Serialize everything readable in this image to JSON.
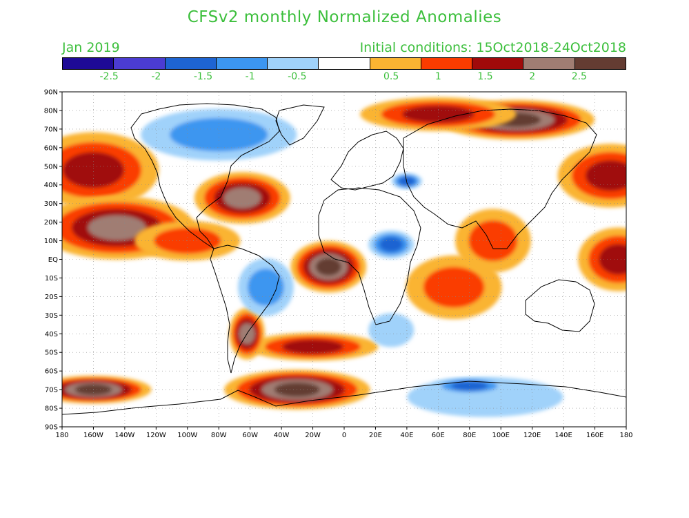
{
  "title": "CFSv2 monthly Normalized Anomalies",
  "month_label": "Jan 2019",
  "init_conditions": "Initial conditions: 15Oct2018-24Oct2018",
  "colorbar": {
    "colors": [
      "#1e0a96",
      "#4b3cd2",
      "#1e64d2",
      "#3c96f0",
      "#a0d2fa",
      "#ffffff",
      "#fab432",
      "#fa3c00",
      "#a00a0a",
      "#a07d73",
      "#643c32"
    ],
    "tick_labels": [
      "-2.5",
      "-2",
      "-1.5",
      "-1",
      "-0.5",
      "0.5",
      "1",
      "1.5",
      "2",
      "2.5"
    ],
    "tick_values": [
      -2.5,
      -2,
      -1.5,
      -1,
      -0.5,
      0.5,
      1,
      1.5,
      2,
      2.5
    ],
    "min": -3,
    "max": 3
  },
  "axes": {
    "lon_ticks": [
      {
        "value": -180,
        "label": "180"
      },
      {
        "value": -160,
        "label": "160W"
      },
      {
        "value": -140,
        "label": "140W"
      },
      {
        "value": -120,
        "label": "120W"
      },
      {
        "value": -100,
        "label": "100W"
      },
      {
        "value": -80,
        "label": "80W"
      },
      {
        "value": -60,
        "label": "60W"
      },
      {
        "value": -40,
        "label": "40W"
      },
      {
        "value": -20,
        "label": "20W"
      },
      {
        "value": 0,
        "label": "0"
      },
      {
        "value": 20,
        "label": "20E"
      },
      {
        "value": 40,
        "label": "40E"
      },
      {
        "value": 60,
        "label": "60E"
      },
      {
        "value": 80,
        "label": "80E"
      },
      {
        "value": 100,
        "label": "100E"
      },
      {
        "value": 120,
        "label": "120E"
      },
      {
        "value": 140,
        "label": "140E"
      },
      {
        "value": 160,
        "label": "160E"
      },
      {
        "value": 180,
        "label": "180"
      }
    ],
    "lat_ticks": [
      {
        "value": 90,
        "label": "90N"
      },
      {
        "value": 80,
        "label": "80N"
      },
      {
        "value": 70,
        "label": "70N"
      },
      {
        "value": 60,
        "label": "60N"
      },
      {
        "value": 50,
        "label": "50N"
      },
      {
        "value": 40,
        "label": "40N"
      },
      {
        "value": 30,
        "label": "30N"
      },
      {
        "value": 20,
        "label": "20N"
      },
      {
        "value": 10,
        "label": "10N"
      },
      {
        "value": 0,
        "label": "EQ"
      },
      {
        "value": -10,
        "label": "10S"
      },
      {
        "value": -20,
        "label": "20S"
      },
      {
        "value": -30,
        "label": "30S"
      },
      {
        "value": -40,
        "label": "40S"
      },
      {
        "value": -50,
        "label": "50S"
      },
      {
        "value": -60,
        "label": "60S"
      },
      {
        "value": -70,
        "label": "70S"
      },
      {
        "value": -80,
        "label": "80S"
      },
      {
        "value": -90,
        "label": "90S"
      }
    ]
  },
  "anomaly_regions": [
    {
      "name": "north-pacific-warm",
      "lon": -160,
      "lat": 48,
      "rlon": 25,
      "rlat": 12,
      "level": 1.8
    },
    {
      "name": "subtropical-pacific-warm",
      "lon": -145,
      "lat": 17,
      "rlon": 30,
      "rlat": 10,
      "level": 2.2
    },
    {
      "name": "west-atlantic-warm",
      "lon": -65,
      "lat": 33,
      "rlon": 18,
      "rlat": 8,
      "level": 2.0
    },
    {
      "name": "east-pacific-warm",
      "lon": -100,
      "lat": 10,
      "rlon": 20,
      "rlat": 6,
      "level": 1.2
    },
    {
      "name": "gulf-of-guinea-warm",
      "lon": -10,
      "lat": -4,
      "rlon": 14,
      "rlat": 8,
      "level": 2.6
    },
    {
      "name": "south-atlantic-band",
      "lon": -20,
      "lat": -47,
      "rlon": 25,
      "rlat": 4,
      "level": 1.6
    },
    {
      "name": "argentina-warm",
      "lon": -62,
      "lat": -40,
      "rlon": 6,
      "rlat": 8,
      "level": 2.4
    },
    {
      "name": "indian-ocean-warm",
      "lon": 70,
      "lat": -15,
      "rlon": 18,
      "rlat": 10,
      "level": 1.1
    },
    {
      "name": "bay-of-bengal-warm",
      "lon": 95,
      "lat": 10,
      "rlon": 14,
      "rlat": 10,
      "level": 1.2
    },
    {
      "name": "west-pacific-warm",
      "lon": 175,
      "lat": 0,
      "rlon": 15,
      "rlat": 10,
      "level": 1.8
    },
    {
      "name": "nw-pacific-warm",
      "lon": 170,
      "lat": 45,
      "rlon": 20,
      "rlat": 10,
      "level": 1.6
    },
    {
      "name": "siberia-warm",
      "lon": 110,
      "lat": 75,
      "rlon": 30,
      "rlat": 6,
      "level": 2.6
    },
    {
      "name": "arctic-warm",
      "lon": 60,
      "lat": 78,
      "rlon": 30,
      "rlat": 5,
      "level": 1.6
    },
    {
      "name": "ross-sea-warm",
      "lon": -160,
      "lat": -70,
      "rlon": 22,
      "rlat": 4,
      "level": 2.7
    },
    {
      "name": "weddell-sea-warm",
      "lon": -30,
      "lat": -70,
      "rlon": 28,
      "rlat": 6,
      "level": 2.7
    },
    {
      "name": "east-antarctic-cool",
      "lon": 90,
      "lat": -74,
      "rlon": 30,
      "rlat": 6,
      "level": -0.8
    },
    {
      "name": "dronning-maud-blue",
      "lon": 80,
      "lat": -68,
      "rlon": 14,
      "rlat": 2,
      "level": -1.6
    },
    {
      "name": "greenland-cool",
      "lon": -80,
      "lat": 67,
      "rlon": 30,
      "rlat": 8,
      "level": -1.2
    },
    {
      "name": "brazil-cool",
      "lon": -50,
      "lat": -15,
      "rlon": 10,
      "rlat": 9,
      "level": -1.0
    },
    {
      "name": "central-africa-cool",
      "lon": 30,
      "lat": 8,
      "rlon": 8,
      "rlat": 4,
      "level": -1.5
    },
    {
      "name": "caspian-cool",
      "lon": 40,
      "lat": 42,
      "rlon": 5,
      "rlat": 2,
      "level": -1.6
    },
    {
      "name": "south-indian-cool",
      "lon": 30,
      "lat": -38,
      "rlon": 8,
      "rlat": 5,
      "level": -0.7
    }
  ]
}
